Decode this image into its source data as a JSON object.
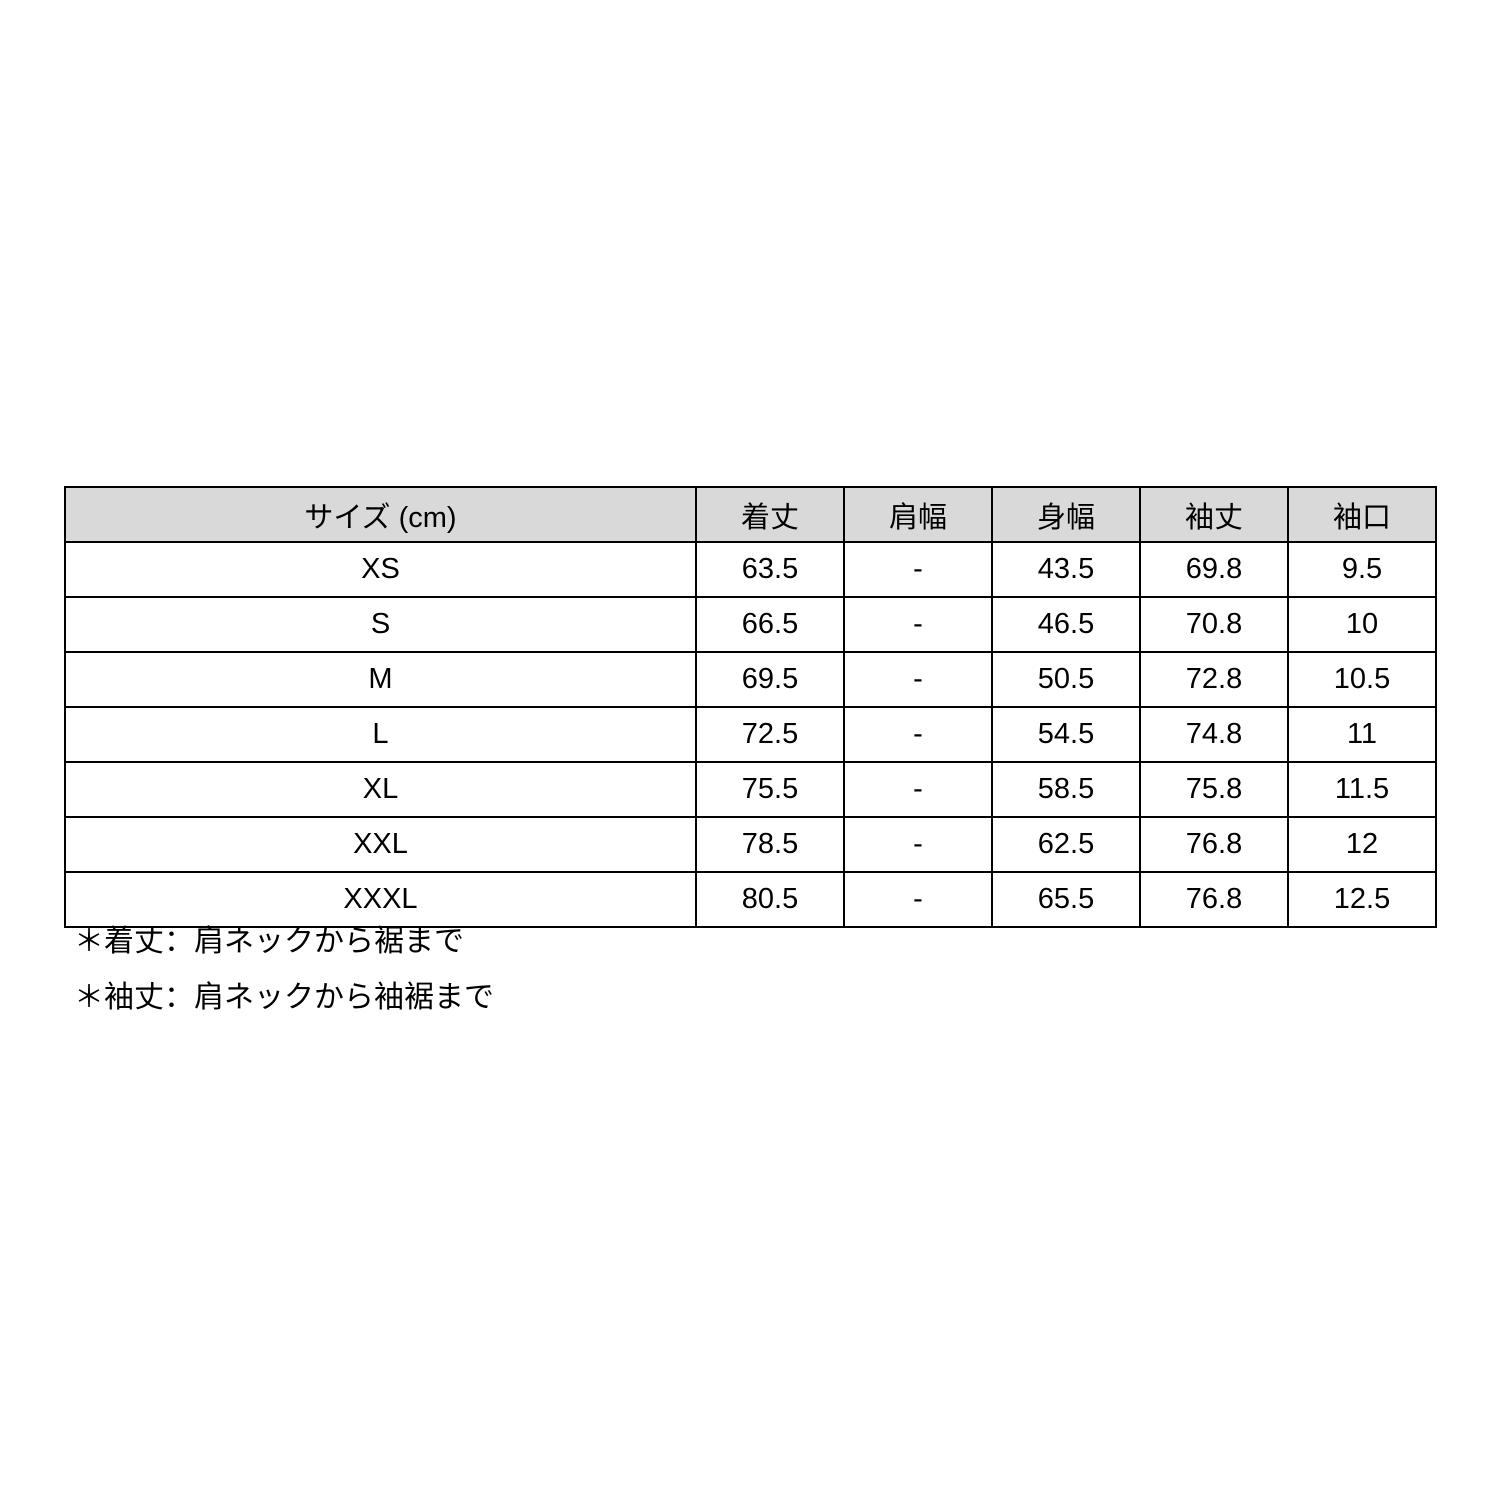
{
  "table": {
    "header": {
      "size_label": "サイズ (cm)",
      "columns": [
        "着丈",
        "肩幅",
        "身幅",
        "袖丈",
        "袖口"
      ]
    },
    "rows": [
      {
        "size": "XS",
        "values": [
          "63.5",
          "-",
          "43.5",
          "69.8",
          "9.5"
        ]
      },
      {
        "size": "S",
        "values": [
          "66.5",
          "-",
          "46.5",
          "70.8",
          "10"
        ]
      },
      {
        "size": "M",
        "values": [
          "69.5",
          "-",
          "50.5",
          "72.8",
          "10.5"
        ]
      },
      {
        "size": "L",
        "values": [
          "72.5",
          "-",
          "54.5",
          "74.8",
          "11"
        ]
      },
      {
        "size": "XL",
        "values": [
          "75.5",
          "-",
          "58.5",
          "75.8",
          "11.5"
        ]
      },
      {
        "size": "XXL",
        "values": [
          "78.5",
          "-",
          "62.5",
          "76.8",
          "12"
        ]
      },
      {
        "size": "XXXL",
        "values": [
          "80.5",
          "-",
          "65.5",
          "76.8",
          "12.5"
        ]
      }
    ]
  },
  "footnotes": [
    "＊着丈：肩ネックから裾まで",
    "＊袖丈：肩ネックから袖裾まで"
  ],
  "colors": {
    "background": "#ffffff",
    "header_bg": "#d9d9d9",
    "border": "#000000",
    "text": "#000000"
  }
}
